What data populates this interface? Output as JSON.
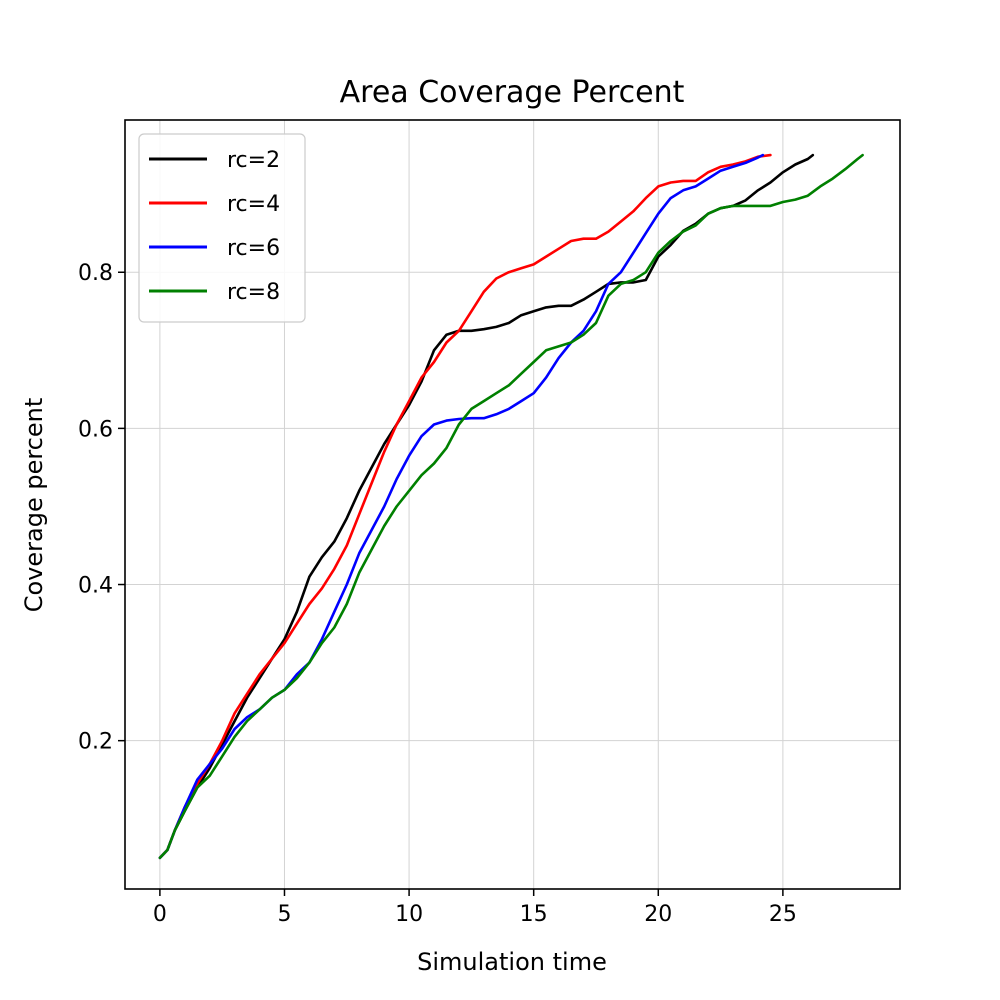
{
  "chart_data": {
    "type": "line",
    "title": "Area Coverage Percent",
    "xlabel": "Simulation time",
    "ylabel": "Coverage percent",
    "xlim": [
      -1.4,
      29.7
    ],
    "ylim": [
      0.01,
      0.995
    ],
    "xticks": [
      0,
      5,
      10,
      15,
      20,
      25
    ],
    "xtick_labels": [
      "0",
      "5",
      "10",
      "15",
      "20",
      "25"
    ],
    "yticks": [
      0.2,
      0.4,
      0.6,
      0.8
    ],
    "ytick_labels": [
      "0.2",
      "0.4",
      "0.6",
      "0.8"
    ],
    "grid": true,
    "legend_position": "upper-left",
    "series": [
      {
        "name": "rc=2",
        "color": "#000000",
        "x": [
          0,
          0.3,
          0.6,
          1,
          1.5,
          2,
          2.5,
          3,
          3.5,
          4,
          4.5,
          5,
          5.5,
          6,
          6.5,
          7,
          7.5,
          8,
          8.5,
          9,
          9.5,
          10,
          10.5,
          11,
          11.5,
          12,
          12.5,
          13,
          13.5,
          14,
          14.5,
          15,
          15.5,
          16,
          16.5,
          17,
          17.5,
          18,
          18.5,
          19,
          19.5,
          20,
          20.5,
          21,
          21.5,
          22,
          22.5,
          23,
          23.5,
          24,
          24.5,
          25,
          25.5,
          26,
          26.2
        ],
        "y": [
          0.05,
          0.06,
          0.085,
          0.11,
          0.14,
          0.165,
          0.195,
          0.225,
          0.255,
          0.28,
          0.305,
          0.33,
          0.365,
          0.41,
          0.435,
          0.455,
          0.485,
          0.52,
          0.55,
          0.58,
          0.605,
          0.63,
          0.66,
          0.7,
          0.72,
          0.725,
          0.725,
          0.727,
          0.73,
          0.735,
          0.745,
          0.75,
          0.755,
          0.757,
          0.757,
          0.765,
          0.775,
          0.785,
          0.787,
          0.787,
          0.79,
          0.82,
          0.835,
          0.853,
          0.862,
          0.875,
          0.882,
          0.885,
          0.892,
          0.905,
          0.915,
          0.928,
          0.938,
          0.945,
          0.95
        ]
      },
      {
        "name": "rc=4",
        "color": "#ff0000",
        "x": [
          0,
          0.3,
          0.6,
          1,
          1.5,
          2,
          2.5,
          3,
          3.5,
          4,
          4.5,
          5,
          5.5,
          6,
          6.5,
          7,
          7.5,
          8,
          8.5,
          9,
          9.5,
          10,
          10.5,
          11,
          11.5,
          12,
          12.5,
          13,
          13.5,
          14,
          14.5,
          15,
          15.5,
          16,
          16.5,
          17,
          17.5,
          18,
          18.5,
          19,
          19.5,
          20,
          20.5,
          21,
          21.5,
          22,
          22.5,
          23,
          23.5,
          24,
          24.5
        ],
        "y": [
          0.05,
          0.06,
          0.085,
          0.115,
          0.145,
          0.17,
          0.2,
          0.235,
          0.26,
          0.285,
          0.305,
          0.325,
          0.35,
          0.375,
          0.395,
          0.42,
          0.45,
          0.49,
          0.53,
          0.57,
          0.605,
          0.635,
          0.665,
          0.685,
          0.71,
          0.725,
          0.75,
          0.775,
          0.792,
          0.8,
          0.805,
          0.81,
          0.82,
          0.83,
          0.84,
          0.843,
          0.843,
          0.852,
          0.865,
          0.878,
          0.895,
          0.91,
          0.915,
          0.917,
          0.917,
          0.928,
          0.935,
          0.938,
          0.942,
          0.948,
          0.95
        ]
      },
      {
        "name": "rc=6",
        "color": "#0000ff",
        "x": [
          0,
          0.3,
          0.6,
          1,
          1.5,
          2,
          2.5,
          3,
          3.5,
          4,
          4.5,
          5,
          5.5,
          6,
          6.5,
          7,
          7.5,
          8,
          8.5,
          9,
          9.5,
          10,
          10.5,
          11,
          11.5,
          12,
          12.5,
          13,
          13.5,
          14,
          14.5,
          15,
          15.5,
          16,
          16.5,
          17,
          17.5,
          18,
          18.5,
          19,
          19.5,
          20,
          20.5,
          21,
          21.5,
          22,
          22.5,
          23,
          23.5,
          24,
          24.2
        ],
        "y": [
          0.05,
          0.06,
          0.085,
          0.115,
          0.15,
          0.17,
          0.19,
          0.215,
          0.23,
          0.24,
          0.255,
          0.265,
          0.285,
          0.3,
          0.33,
          0.365,
          0.4,
          0.44,
          0.47,
          0.5,
          0.535,
          0.565,
          0.59,
          0.605,
          0.61,
          0.612,
          0.613,
          0.613,
          0.618,
          0.625,
          0.635,
          0.645,
          0.665,
          0.69,
          0.71,
          0.725,
          0.75,
          0.785,
          0.8,
          0.825,
          0.85,
          0.875,
          0.895,
          0.905,
          0.91,
          0.92,
          0.93,
          0.935,
          0.94,
          0.947,
          0.95
        ]
      },
      {
        "name": "rc=8",
        "color": "#008000",
        "x": [
          0,
          0.3,
          0.6,
          1,
          1.5,
          2,
          2.5,
          3,
          3.5,
          4,
          4.5,
          5,
          5.5,
          6,
          6.5,
          7,
          7.5,
          8,
          8.5,
          9,
          9.5,
          10,
          10.5,
          11,
          11.5,
          12,
          12.5,
          13,
          13.5,
          14,
          14.5,
          15,
          15.5,
          16,
          16.5,
          17,
          17.5,
          18,
          18.5,
          19,
          19.5,
          20,
          20.5,
          21,
          21.5,
          22,
          22.5,
          23,
          23.5,
          24,
          24.5,
          25,
          25.5,
          26,
          26.5,
          27,
          27.5,
          28,
          28.2
        ],
        "y": [
          0.05,
          0.06,
          0.085,
          0.11,
          0.14,
          0.155,
          0.18,
          0.205,
          0.225,
          0.24,
          0.255,
          0.265,
          0.28,
          0.3,
          0.325,
          0.345,
          0.375,
          0.415,
          0.445,
          0.475,
          0.5,
          0.52,
          0.54,
          0.555,
          0.575,
          0.605,
          0.625,
          0.635,
          0.645,
          0.655,
          0.67,
          0.685,
          0.7,
          0.705,
          0.71,
          0.72,
          0.735,
          0.77,
          0.785,
          0.79,
          0.8,
          0.825,
          0.84,
          0.852,
          0.86,
          0.875,
          0.882,
          0.885,
          0.885,
          0.885,
          0.885,
          0.89,
          0.893,
          0.898,
          0.91,
          0.92,
          0.932,
          0.945,
          0.95
        ]
      }
    ]
  }
}
